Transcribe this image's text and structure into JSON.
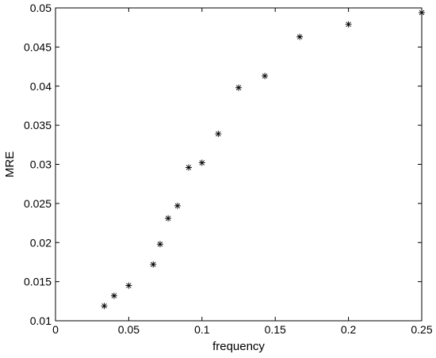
{
  "chart_data": {
    "type": "scatter",
    "title": "",
    "xlabel": "frequency",
    "ylabel": "MRE",
    "xlim": [
      0,
      0.25
    ],
    "ylim": [
      0.01,
      0.05
    ],
    "x_ticks": [
      0,
      0.05,
      0.1,
      0.15,
      0.2,
      0.25
    ],
    "x_tick_labels": [
      "0",
      "0.05",
      "0.1",
      "0.15",
      "0.2",
      "0.25"
    ],
    "y_ticks": [
      0.01,
      0.015,
      0.02,
      0.025,
      0.03,
      0.035,
      0.04,
      0.045,
      0.05
    ],
    "y_tick_labels": [
      "0.01",
      "0.015",
      "0.02",
      "0.025",
      "0.03",
      "0.035",
      "0.04",
      "0.045",
      "0.05"
    ],
    "grid": false,
    "legend": "none",
    "marker": "asterisk",
    "marker_color": "#000000",
    "series": [
      {
        "points": [
          {
            "x": 0.0333,
            "y": 0.0119
          },
          {
            "x": 0.04,
            "y": 0.0132
          },
          {
            "x": 0.05,
            "y": 0.0145
          },
          {
            "x": 0.0667,
            "y": 0.0172
          },
          {
            "x": 0.0714,
            "y": 0.0198
          },
          {
            "x": 0.0769,
            "y": 0.0231
          },
          {
            "x": 0.0833,
            "y": 0.0247
          },
          {
            "x": 0.0909,
            "y": 0.0296
          },
          {
            "x": 0.1,
            "y": 0.0302
          },
          {
            "x": 0.1111,
            "y": 0.0339
          },
          {
            "x": 0.125,
            "y": 0.0398
          },
          {
            "x": 0.1429,
            "y": 0.0413
          },
          {
            "x": 0.1667,
            "y": 0.0463
          },
          {
            "x": 0.2,
            "y": 0.0479
          },
          {
            "x": 0.25,
            "y": 0.0494
          }
        ]
      }
    ]
  }
}
